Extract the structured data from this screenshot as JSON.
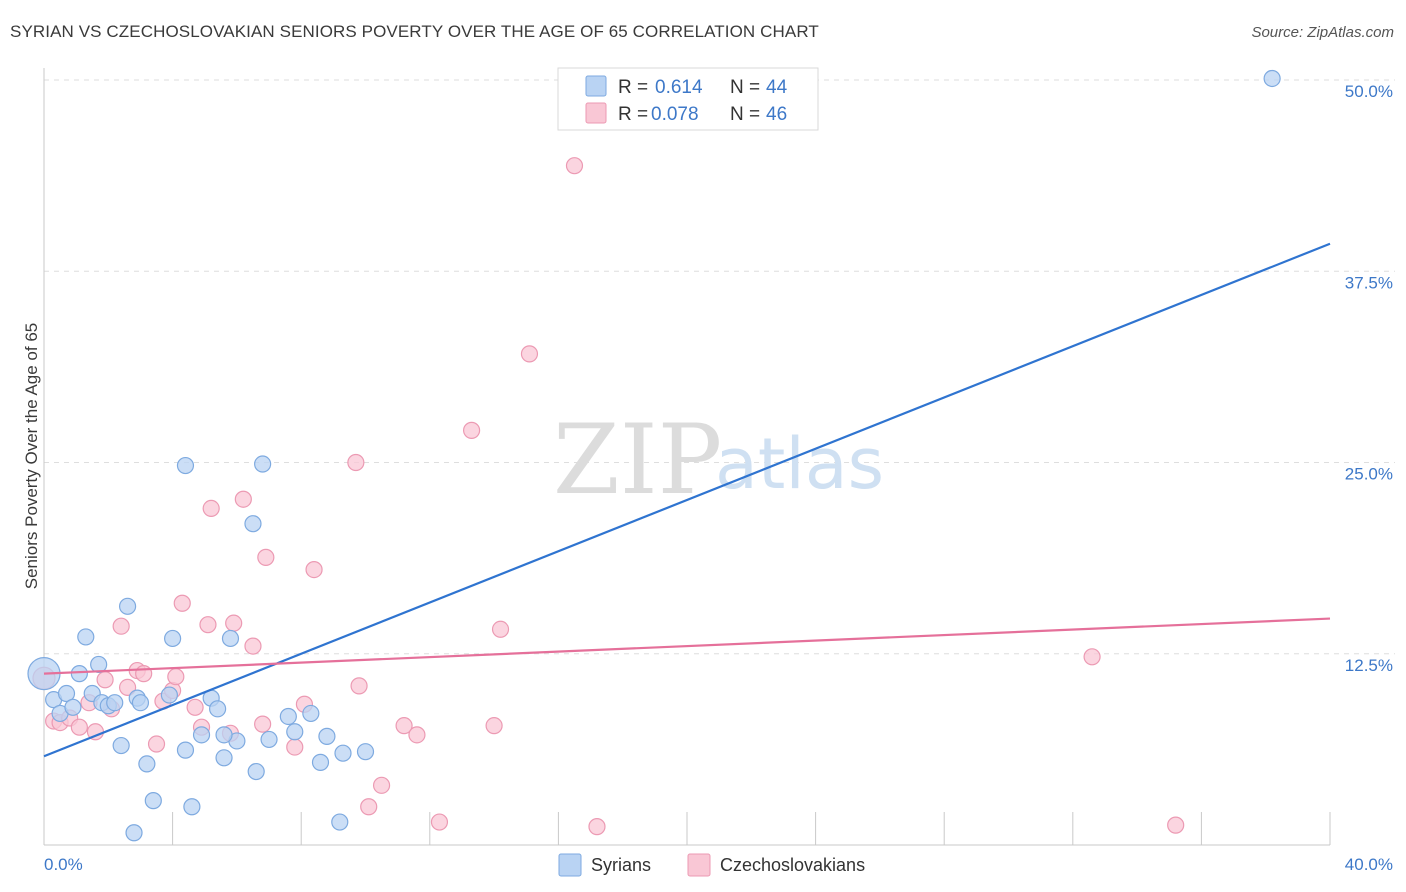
{
  "header": {
    "title": "SYRIAN VS CZECHOSLOVAKIAN SENIORS POVERTY OVER THE AGE OF 65 CORRELATION CHART",
    "source": "Source: ZipAtlas.com"
  },
  "watermark": {
    "zip": "ZIP",
    "atlas": "atlas"
  },
  "colors": {
    "syrians_fill": "#b9d3f3",
    "syrians_stroke": "#7eaae0",
    "syrians_line": "#2f74d0",
    "czech_fill": "#f9c7d5",
    "czech_stroke": "#ec9ab3",
    "czech_line": "#e5709a",
    "accent_text": "#3d78c8"
  },
  "legend": {
    "rows": [
      {
        "r_label": "R =",
        "r_value": "0.614",
        "n_label": "N =",
        "n_value": "44"
      },
      {
        "r_label": "R =",
        "r_value": "0.078",
        "n_label": "N =",
        "n_value": "46"
      }
    ]
  },
  "chart_data": {
    "type": "scatter",
    "title": "SYRIAN VS CZECHOSLOVAKIAN SENIORS POVERTY OVER THE AGE OF 65 CORRELATION CHART",
    "xlabel": "",
    "ylabel": "Seniors Poverty Over the Age of 65",
    "xlim": [
      0,
      40
    ],
    "ylim": [
      0,
      50
    ],
    "x_tick_labels": [
      {
        "value": 0,
        "label": "0.0%"
      },
      {
        "value": 40,
        "label": "40.0%"
      }
    ],
    "y_tick_labels": [
      {
        "value": 12.5,
        "label": "12.5%"
      },
      {
        "value": 25,
        "label": "25.0%"
      },
      {
        "value": 37.5,
        "label": "37.5%"
      },
      {
        "value": 50,
        "label": "50.0%"
      }
    ],
    "grid": true,
    "legend_position": "top-center",
    "series": [
      {
        "name": "Syrians",
        "r": 0.614,
        "n": 44,
        "trend": {
          "x": [
            0,
            40
          ],
          "y": [
            5.8,
            39.3
          ]
        },
        "points": [
          [
            0.0,
            11.2,
            16
          ],
          [
            0.3,
            9.5,
            8
          ],
          [
            0.5,
            8.6,
            8
          ],
          [
            0.7,
            9.9,
            8
          ],
          [
            0.9,
            9.0,
            8
          ],
          [
            1.1,
            11.2,
            8
          ],
          [
            1.3,
            13.6,
            8
          ],
          [
            1.5,
            9.9,
            8
          ],
          [
            1.7,
            11.8,
            8
          ],
          [
            1.8,
            9.3,
            8
          ],
          [
            2.0,
            9.1,
            8
          ],
          [
            2.2,
            9.3,
            8
          ],
          [
            2.4,
            6.5,
            8
          ],
          [
            2.6,
            15.6,
            8
          ],
          [
            2.8,
            0.8,
            8
          ],
          [
            2.9,
            9.6,
            8
          ],
          [
            3.2,
            5.3,
            8
          ],
          [
            3.4,
            2.9,
            8
          ],
          [
            3.9,
            9.8,
            8
          ],
          [
            4.0,
            13.5,
            8
          ],
          [
            4.4,
            6.2,
            8
          ],
          [
            4.6,
            2.5,
            8
          ],
          [
            4.4,
            24.8,
            8
          ],
          [
            4.9,
            7.2,
            8
          ],
          [
            5.2,
            9.6,
            8
          ],
          [
            5.4,
            8.9,
            8
          ],
          [
            5.6,
            5.7,
            8
          ],
          [
            5.8,
            13.5,
            8
          ],
          [
            6.0,
            6.8,
            8
          ],
          [
            6.5,
            21.0,
            8
          ],
          [
            6.6,
            4.8,
            8
          ],
          [
            6.8,
            24.9,
            8
          ],
          [
            7.0,
            6.9,
            8
          ],
          [
            7.6,
            8.4,
            8
          ],
          [
            7.8,
            7.4,
            8
          ],
          [
            8.6,
            5.4,
            8
          ],
          [
            8.8,
            7.1,
            8
          ],
          [
            9.2,
            1.5,
            8
          ],
          [
            9.3,
            6.0,
            8
          ],
          [
            10.0,
            6.1,
            8
          ],
          [
            8.3,
            8.6,
            8
          ],
          [
            3.0,
            9.3,
            8
          ],
          [
            5.6,
            7.2,
            8
          ],
          [
            38.2,
            50.1,
            8
          ]
        ]
      },
      {
        "name": "Czechoslovakians",
        "r": 0.078,
        "n": 46,
        "trend": {
          "x": [
            0,
            40
          ],
          "y": [
            11.2,
            14.8
          ]
        },
        "points": [
          [
            0.0,
            10.9,
            11
          ],
          [
            0.3,
            8.1,
            8
          ],
          [
            0.5,
            8.0,
            8
          ],
          [
            0.8,
            8.3,
            8
          ],
          [
            1.1,
            7.7,
            8
          ],
          [
            1.4,
            9.3,
            8
          ],
          [
            1.6,
            7.4,
            8
          ],
          [
            1.9,
            10.8,
            8
          ],
          [
            2.1,
            8.9,
            8
          ],
          [
            2.4,
            14.3,
            8
          ],
          [
            2.6,
            10.3,
            8
          ],
          [
            2.9,
            11.4,
            8
          ],
          [
            3.1,
            11.2,
            8
          ],
          [
            3.5,
            6.6,
            8
          ],
          [
            3.7,
            9.4,
            8
          ],
          [
            4.0,
            10.1,
            8
          ],
          [
            4.1,
            11.0,
            8
          ],
          [
            4.3,
            15.8,
            8
          ],
          [
            4.7,
            9.0,
            8
          ],
          [
            4.9,
            7.7,
            8
          ],
          [
            5.2,
            22.0,
            8
          ],
          [
            5.1,
            14.4,
            8
          ],
          [
            5.8,
            7.3,
            8
          ],
          [
            5.9,
            14.5,
            8
          ],
          [
            6.2,
            22.6,
            8
          ],
          [
            6.5,
            13.0,
            8
          ],
          [
            6.8,
            7.9,
            8
          ],
          [
            6.9,
            18.8,
            8
          ],
          [
            7.8,
            6.4,
            8
          ],
          [
            8.1,
            9.2,
            8
          ],
          [
            8.4,
            18.0,
            8
          ],
          [
            9.7,
            25.0,
            8
          ],
          [
            9.8,
            10.4,
            8
          ],
          [
            10.1,
            2.5,
            8
          ],
          [
            10.5,
            3.9,
            8
          ],
          [
            11.2,
            7.8,
            8
          ],
          [
            11.6,
            7.2,
            8
          ],
          [
            12.3,
            1.5,
            8
          ],
          [
            13.3,
            27.1,
            8
          ],
          [
            14.0,
            7.8,
            8
          ],
          [
            14.2,
            14.1,
            8
          ],
          [
            15.1,
            32.1,
            8
          ],
          [
            16.5,
            44.4,
            8
          ],
          [
            17.2,
            1.2,
            8
          ],
          [
            32.6,
            12.3,
            8
          ],
          [
            35.2,
            1.3,
            8
          ]
        ]
      }
    ]
  },
  "bottom_legend": {
    "items": [
      "Syrians",
      "Czechoslovakians"
    ]
  }
}
